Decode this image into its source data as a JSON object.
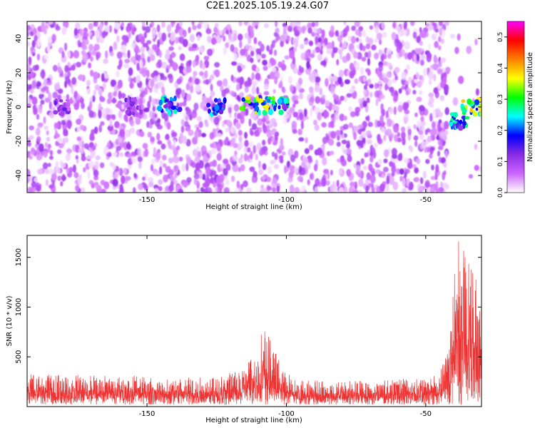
{
  "figure": {
    "title": "C2E1.2025.105.19.24.G07"
  },
  "chart_data": [
    {
      "type": "heatmap",
      "title": "",
      "xlabel": "Height of straight line (km)",
      "ylabel": "Frequency (Hz)",
      "xlim": [
        -193,
        -30
      ],
      "ylim": [
        -50,
        50
      ],
      "xticks": [
        -150,
        -100,
        -50
      ],
      "yticks": [
        -40,
        -20,
        0,
        20,
        40
      ],
      "colorbar": {
        "label": "Normalized spectral amplitude",
        "range": [
          0,
          0.55
        ],
        "ticks": [
          0.0,
          0.1,
          0.2,
          0.3,
          0.4,
          0.5
        ],
        "tick_labels": [
          "0.0",
          "0.1",
          "0.2",
          "0.3",
          "0.4",
          "0.5"
        ],
        "colormap": [
          "#ffffff",
          "#cc66ff",
          "#8a2be2",
          "#0000ff",
          "#00ffff",
          "#00ff00",
          "#ffff00",
          "#ff8000",
          "#ff0000",
          "#ff00ff"
        ]
      },
      "features": [
        {
          "x_range": [
            -183,
            -178
          ],
          "freq_center": 0,
          "peak_amplitude": 0.15
        },
        {
          "x_range": [
            -158,
            -152
          ],
          "freq_center": 0,
          "peak_amplitude": 0.14
        },
        {
          "x_range": [
            -146,
            -138
          ],
          "freq_center": 1,
          "peak_amplitude": 0.28
        },
        {
          "x_range": [
            -128,
            -122
          ],
          "freq_center": 0,
          "peak_amplitude": 0.26
        },
        {
          "x_range": [
            -116,
            -104
          ],
          "freq_center": 1,
          "peak_amplitude": 0.42
        },
        {
          "x_range": [
            -103,
            -99
          ],
          "freq_center": 1,
          "peak_amplitude": 0.3
        },
        {
          "x_range": [
            -41,
            -35
          ],
          "freq_center": -8,
          "peak_amplitude": 0.3
        },
        {
          "x_range": [
            -37,
            -30
          ],
          "freq_center": 0,
          "peak_amplitude": 0.4
        }
      ],
      "blank_region": [
        -42,
        -30
      ]
    },
    {
      "type": "line",
      "title": "",
      "xlabel": "Height of straight line (km)",
      "ylabel": "SNR (10 * v/v)",
      "xlim": [
        -193,
        -30
      ],
      "ylim": [
        0,
        1720
      ],
      "xticks": [
        -150,
        -100,
        -50
      ],
      "yticks": [
        500,
        1000,
        1500
      ],
      "series_color": "#ee3333",
      "envelope": {
        "x": [
          -193,
          -185,
          -175,
          -165,
          -155,
          -145,
          -135,
          -125,
          -118,
          -112,
          -110,
          -108,
          -106,
          -104,
          -100,
          -95,
          -85,
          -75,
          -65,
          -55,
          -50,
          -46,
          -44,
          -42,
          -40,
          -38,
          -36,
          -34,
          -32,
          -30
        ],
        "y_min": [
          20,
          20,
          20,
          20,
          20,
          20,
          20,
          20,
          20,
          20,
          20,
          20,
          20,
          20,
          20,
          20,
          20,
          20,
          20,
          20,
          20,
          20,
          20,
          20,
          20,
          20,
          20,
          20,
          20,
          20
        ],
        "y_max": [
          330,
          320,
          330,
          310,
          320,
          310,
          300,
          310,
          360,
          500,
          650,
          800,
          700,
          550,
          340,
          280,
          260,
          260,
          270,
          290,
          300,
          320,
          420,
          750,
          1350,
          1720,
          1600,
          1450,
          1300,
          1200
        ]
      }
    }
  ]
}
